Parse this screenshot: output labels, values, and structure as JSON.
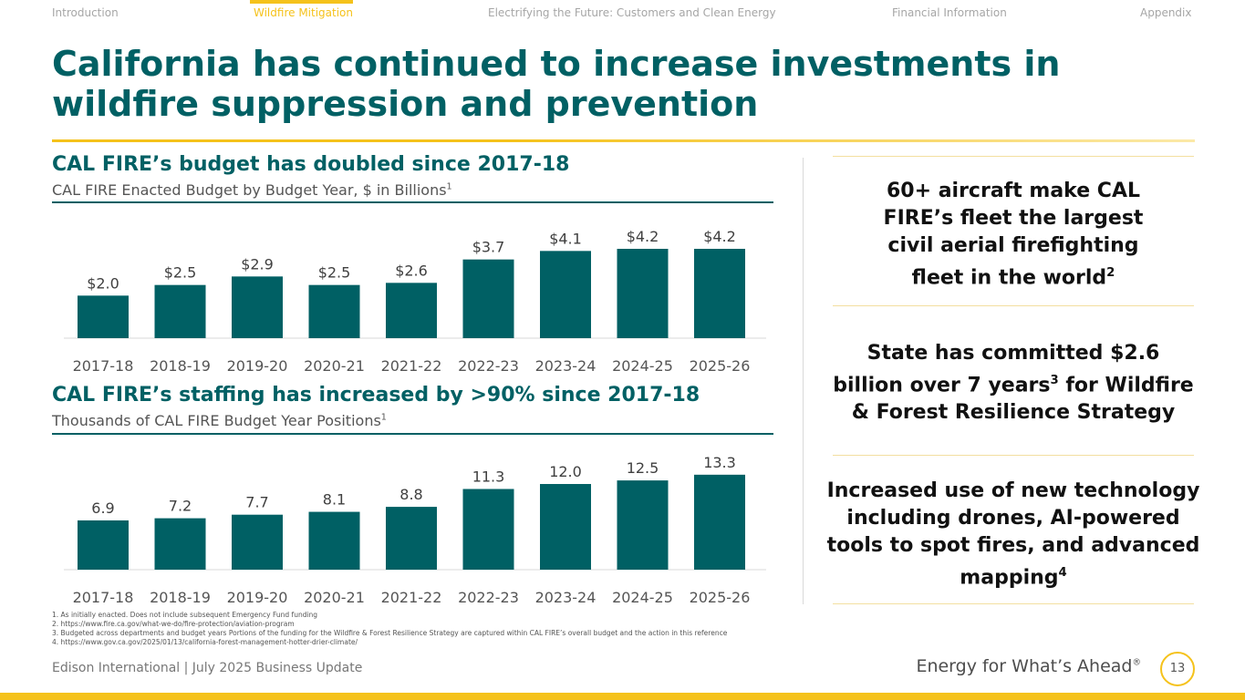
{
  "nav": {
    "tabs": [
      {
        "label": "Introduction",
        "active": false
      },
      {
        "label": "Wildfire Mitigation",
        "active": true
      },
      {
        "label": "Electrifying the Future: Customers and Clean Energy",
        "active": false
      },
      {
        "label": "Financial Information",
        "active": false
      },
      {
        "label": "Appendix",
        "active": false
      }
    ]
  },
  "title": "California has continued to increase investments in wildfire suppression and prevention",
  "budget_section": {
    "heading": "CAL FIRE’s budget has doubled since 2017-18",
    "subtitle": "CAL FIRE Enacted Budget by Budget Year, $ in Billions",
    "subtitle_ref": "1"
  },
  "staffing_section": {
    "heading": "CAL FIRE’s staffing has increased by >90% since 2017-18",
    "subtitle": "Thousands of CAL FIRE Budget Year Positions",
    "subtitle_ref": "1"
  },
  "chart_data": [
    {
      "type": "bar",
      "title": "CAL FIRE Enacted Budget by Budget Year, $ in Billions",
      "categories": [
        "2017-18",
        "2018-19",
        "2019-20",
        "2020-21",
        "2021-22",
        "2022-23",
        "2023-24",
        "2024-25",
        "2025-26"
      ],
      "values": [
        2.0,
        2.5,
        2.9,
        2.5,
        2.6,
        3.7,
        4.1,
        4.2,
        4.2
      ],
      "labels": [
        "$2.0",
        "$2.5",
        "$2.9",
        "$2.5",
        "$2.6",
        "$3.7",
        "$4.1",
        "$4.2",
        "$4.2"
      ],
      "xlabel": "",
      "ylabel": "$ in Billions",
      "ylim": [
        0,
        4.5
      ],
      "color": "#006064"
    },
    {
      "type": "bar",
      "title": "Thousands of CAL FIRE Budget Year Positions",
      "categories": [
        "2017-18",
        "2018-19",
        "2019-20",
        "2020-21",
        "2021-22",
        "2022-23",
        "2023-24",
        "2024-25",
        "2025-26"
      ],
      "values": [
        6.9,
        7.2,
        7.7,
        8.1,
        8.8,
        11.3,
        12.0,
        12.5,
        13.3
      ],
      "labels": [
        "6.9",
        "7.2",
        "7.7",
        "8.1",
        "8.8",
        "11.3",
        "12.0",
        "12.5",
        "13.3"
      ],
      "xlabel": "",
      "ylabel": "Thousands of positions",
      "ylim": [
        0,
        14.3
      ],
      "color": "#006064"
    }
  ],
  "callouts": [
    {
      "text": "60+ aircraft make CAL FIRE’s fleet the largest civil aerial firefighting fleet in the world",
      "ref": "2"
    },
    {
      "text": "State has committed $2.6 billion over 7 years",
      "ref": "3",
      "text2": " for Wildfire & Forest Resilience Strategy"
    },
    {
      "text": "Increased use of new technology including drones, AI-powered tools to spot fires, and advanced mapping",
      "ref": "4"
    }
  ],
  "footnotes": [
    "1.   As initially enacted. Does not include subsequent Emergency Fund funding",
    "2.   https://www.fire.ca.gov/what-we-do/fire-protection/aviation-program",
    "3.   Budgeted across departments and budget years Portions of the funding for the Wildfire & Forest Resilience Strategy are captured within CAL FIRE’s overall budget and the action in this reference",
    "4.   https://www.gov.ca.gov/2025/01/13/california-forest-management-hotter-drier-climate/"
  ],
  "footer": {
    "left": "Edison International |  July 2025 Business Update",
    "tagline": "Energy for What’s Ahead",
    "tagline_mark": "®",
    "page_number": "13"
  },
  "colors": {
    "teal": "#006064",
    "gold": "#f5c21b"
  }
}
